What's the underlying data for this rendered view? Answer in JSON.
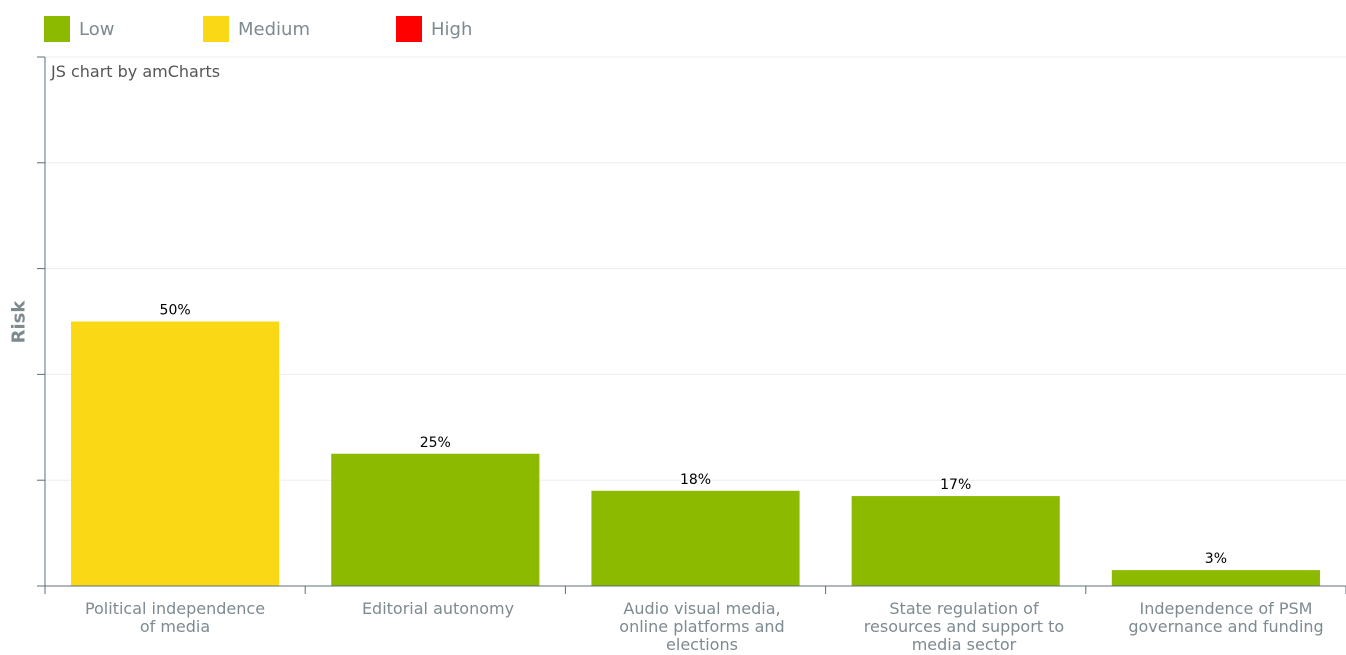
{
  "legend": [
    {
      "label": "Low",
      "color": "#8cba00"
    },
    {
      "label": "Medium",
      "color": "#fad816"
    },
    {
      "label": "High",
      "color": "#ff0000"
    }
  ],
  "credit": "JS chart by amCharts",
  "chart_data": {
    "type": "bar",
    "title": "",
    "xlabel": "",
    "ylabel": "Risk",
    "ylim": [
      0,
      100
    ],
    "grid": true,
    "legend_position": "top-left",
    "categories": [
      "Political independence\nof media",
      "Editorial autonomy",
      "Audio visual media,\nonline platforms and\nelections",
      "State regulation of\nresources and support to\nmedia sector",
      "Independence of PSM\ngovernance and funding"
    ],
    "values": [
      50,
      25,
      18,
      17,
      3
    ],
    "value_labels": [
      "50%",
      "25%",
      "18%",
      "17%",
      "3%"
    ],
    "risk_levels": [
      "Medium",
      "Low",
      "Low",
      "Low",
      "Low"
    ]
  }
}
